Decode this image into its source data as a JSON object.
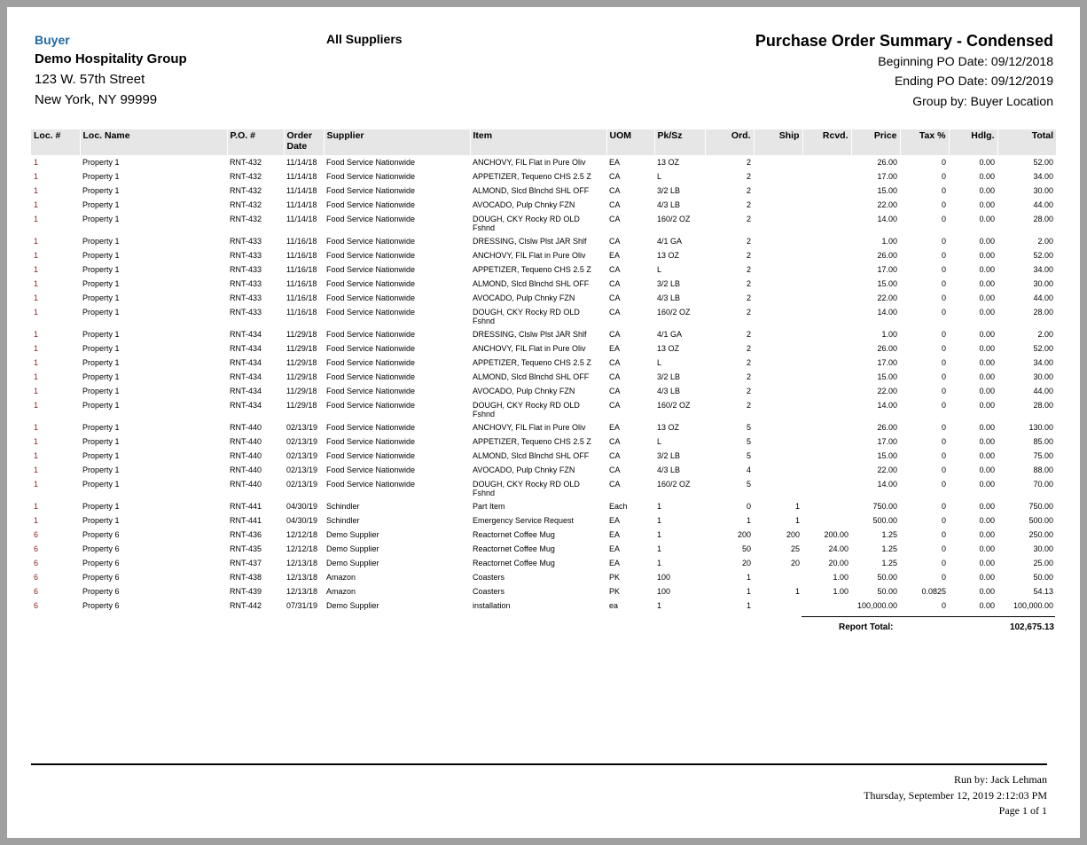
{
  "header": {
    "buyer_label": "Buyer",
    "company": "Demo Hospitality Group",
    "address_line1": "123 W. 57th Street",
    "address_line2": "New York, NY 99999",
    "supplier_filter": "All Suppliers",
    "title": "Purchase Order Summary - Condensed",
    "beginning_date": "Beginning PO Date: 09/12/2018",
    "ending_date": "Ending PO Date: 09/12/2019",
    "group_by": "Group by: Buyer Location"
  },
  "columns": [
    "Loc. #",
    "Loc. Name",
    "P.O. #",
    "Order Date",
    "Supplier",
    "Item",
    "UOM",
    "Pk/Sz",
    "Ord.",
    "Ship",
    "Rcvd.",
    "Price",
    "Tax %",
    "Hdlg.",
    "Total"
  ],
  "rows": [
    [
      "1",
      "Property 1",
      "RNT-432",
      "11/14/18",
      "Food Service Nationwide",
      "ANCHOVY, FIL Flat in Pure Oliv",
      "EA",
      "13 OZ",
      "2",
      "",
      "",
      "26.00",
      "0",
      "0.00",
      "52.00"
    ],
    [
      "1",
      "Property 1",
      "RNT-432",
      "11/14/18",
      "Food Service Nationwide",
      "APPETIZER, Tequeno CHS 2.5 Z",
      "CA",
      "L",
      "2",
      "",
      "",
      "17.00",
      "0",
      "0.00",
      "34.00"
    ],
    [
      "1",
      "Property 1",
      "RNT-432",
      "11/14/18",
      "Food Service Nationwide",
      "ALMOND, Slcd Blnchd SHL OFF",
      "CA",
      "3/2 LB",
      "2",
      "",
      "",
      "15.00",
      "0",
      "0.00",
      "30.00"
    ],
    [
      "1",
      "Property 1",
      "RNT-432",
      "11/14/18",
      "Food Service Nationwide",
      "AVOCADO, Pulp Chnky FZN",
      "CA",
      "4/3 LB",
      "2",
      "",
      "",
      "22.00",
      "0",
      "0.00",
      "44.00"
    ],
    [
      "1",
      "Property 1",
      "RNT-432",
      "11/14/18",
      "Food Service Nationwide",
      "DOUGH, CKY Rocky RD OLD Fshnd",
      "CA",
      "160/2 OZ",
      "2",
      "",
      "",
      "14.00",
      "0",
      "0.00",
      "28.00"
    ],
    [
      "1",
      "Property 1",
      "RNT-433",
      "11/16/18",
      "Food Service Nationwide",
      "DRESSING, Clslw Plst JAR Shlf",
      "CA",
      "4/1 GA",
      "2",
      "",
      "",
      "1.00",
      "0",
      "0.00",
      "2.00"
    ],
    [
      "1",
      "Property 1",
      "RNT-433",
      "11/16/18",
      "Food Service Nationwide",
      "ANCHOVY, FIL Flat in Pure Oliv",
      "EA",
      "13 OZ",
      "2",
      "",
      "",
      "26.00",
      "0",
      "0.00",
      "52.00"
    ],
    [
      "1",
      "Property 1",
      "RNT-433",
      "11/16/18",
      "Food Service Nationwide",
      "APPETIZER, Tequeno CHS 2.5 Z",
      "CA",
      "L",
      "2",
      "",
      "",
      "17.00",
      "0",
      "0.00",
      "34.00"
    ],
    [
      "1",
      "Property 1",
      "RNT-433",
      "11/16/18",
      "Food Service Nationwide",
      "ALMOND, Slcd Blnchd SHL OFF",
      "CA",
      "3/2 LB",
      "2",
      "",
      "",
      "15.00",
      "0",
      "0.00",
      "30.00"
    ],
    [
      "1",
      "Property 1",
      "RNT-433",
      "11/16/18",
      "Food Service Nationwide",
      "AVOCADO, Pulp Chnky FZN",
      "CA",
      "4/3 LB",
      "2",
      "",
      "",
      "22.00",
      "0",
      "0.00",
      "44.00"
    ],
    [
      "1",
      "Property 1",
      "RNT-433",
      "11/16/18",
      "Food Service Nationwide",
      "DOUGH, CKY Rocky RD OLD Fshnd",
      "CA",
      "160/2 OZ",
      "2",
      "",
      "",
      "14.00",
      "0",
      "0.00",
      "28.00"
    ],
    [
      "1",
      "Property 1",
      "RNT-434",
      "11/29/18",
      "Food Service Nationwide",
      "DRESSING, Clslw Plst JAR Shlf",
      "CA",
      "4/1 GA",
      "2",
      "",
      "",
      "1.00",
      "0",
      "0.00",
      "2.00"
    ],
    [
      "1",
      "Property 1",
      "RNT-434",
      "11/29/18",
      "Food Service Nationwide",
      "ANCHOVY, FIL Flat in Pure Oliv",
      "EA",
      "13 OZ",
      "2",
      "",
      "",
      "26.00",
      "0",
      "0.00",
      "52.00"
    ],
    [
      "1",
      "Property 1",
      "RNT-434",
      "11/29/18",
      "Food Service Nationwide",
      "APPETIZER, Tequeno CHS 2.5 Z",
      "CA",
      "L",
      "2",
      "",
      "",
      "17.00",
      "0",
      "0.00",
      "34.00"
    ],
    [
      "1",
      "Property 1",
      "RNT-434",
      "11/29/18",
      "Food Service Nationwide",
      "ALMOND, Slcd Blnchd SHL OFF",
      "CA",
      "3/2 LB",
      "2",
      "",
      "",
      "15.00",
      "0",
      "0.00",
      "30.00"
    ],
    [
      "1",
      "Property 1",
      "RNT-434",
      "11/29/18",
      "Food Service Nationwide",
      "AVOCADO, Pulp Chnky FZN",
      "CA",
      "4/3 LB",
      "2",
      "",
      "",
      "22.00",
      "0",
      "0.00",
      "44.00"
    ],
    [
      "1",
      "Property 1",
      "RNT-434",
      "11/29/18",
      "Food Service Nationwide",
      "DOUGH, CKY Rocky RD OLD Fshnd",
      "CA",
      "160/2 OZ",
      "2",
      "",
      "",
      "14.00",
      "0",
      "0.00",
      "28.00"
    ],
    [
      "1",
      "Property 1",
      "RNT-440",
      "02/13/19",
      "Food Service Nationwide",
      "ANCHOVY, FIL Flat in Pure Oliv",
      "EA",
      "13 OZ",
      "5",
      "",
      "",
      "26.00",
      "0",
      "0.00",
      "130.00"
    ],
    [
      "1",
      "Property 1",
      "RNT-440",
      "02/13/19",
      "Food Service Nationwide",
      "APPETIZER, Tequeno CHS 2.5 Z",
      "CA",
      "L",
      "5",
      "",
      "",
      "17.00",
      "0",
      "0.00",
      "85.00"
    ],
    [
      "1",
      "Property 1",
      "RNT-440",
      "02/13/19",
      "Food Service Nationwide",
      "ALMOND, Slcd Blnchd SHL OFF",
      "CA",
      "3/2 LB",
      "5",
      "",
      "",
      "15.00",
      "0",
      "0.00",
      "75.00"
    ],
    [
      "1",
      "Property 1",
      "RNT-440",
      "02/13/19",
      "Food Service Nationwide",
      "AVOCADO, Pulp Chnky FZN",
      "CA",
      "4/3 LB",
      "4",
      "",
      "",
      "22.00",
      "0",
      "0.00",
      "88.00"
    ],
    [
      "1",
      "Property 1",
      "RNT-440",
      "02/13/19",
      "Food Service Nationwide",
      "DOUGH, CKY Rocky RD OLD Fshnd",
      "CA",
      "160/2 OZ",
      "5",
      "",
      "",
      "14.00",
      "0",
      "0.00",
      "70.00"
    ],
    [
      "1",
      "Property 1",
      "RNT-441",
      "04/30/19",
      "Schindler",
      "Part Item",
      "Each",
      "1",
      "0",
      "1",
      "",
      "750.00",
      "0",
      "0.00",
      "750.00"
    ],
    [
      "1",
      "Property 1",
      "RNT-441",
      "04/30/19",
      "Schindler",
      "Emergency Service Request",
      "EA",
      "1",
      "1",
      "1",
      "",
      "500.00",
      "0",
      "0.00",
      "500.00"
    ],
    [
      "6",
      "Property 6",
      "RNT-436",
      "12/12/18",
      "Demo Supplier",
      "Reactornet Coffee Mug",
      "EA",
      "1",
      "200",
      "200",
      "200.00",
      "1.25",
      "0",
      "0.00",
      "250.00"
    ],
    [
      "6",
      "Property 6",
      "RNT-435",
      "12/12/18",
      "Demo Supplier",
      "Reactornet Coffee Mug",
      "EA",
      "1",
      "50",
      "25",
      "24.00",
      "1.25",
      "0",
      "0.00",
      "30.00"
    ],
    [
      "6",
      "Property 6",
      "RNT-437",
      "12/13/18",
      "Demo Supplier",
      "Reactornet Coffee Mug",
      "EA",
      "1",
      "20",
      "20",
      "20.00",
      "1.25",
      "0",
      "0.00",
      "25.00"
    ],
    [
      "6",
      "Property 6",
      "RNT-438",
      "12/13/18",
      "Amazon",
      "Coasters",
      "PK",
      "100",
      "1",
      "",
      "1.00",
      "50.00",
      "0",
      "0.00",
      "50.00"
    ],
    [
      "6",
      "Property 6",
      "RNT-439",
      "12/13/18",
      "Amazon",
      "Coasters",
      "PK",
      "100",
      "1",
      "1",
      "1.00",
      "50.00",
      "0.0825",
      "0.00",
      "54.13"
    ],
    [
      "6",
      "Property 6",
      "RNT-442",
      "07/31/19",
      "Demo Supplier",
      "installation",
      "ea",
      "1",
      "1",
      "",
      "",
      "100,000.00",
      "0",
      "0.00",
      "100,000.00"
    ]
  ],
  "report_total": {
    "label": "Report Total:",
    "value": "102,675.13"
  },
  "footer": {
    "run_by": "Run by: Jack Lehman",
    "run_at": "Thursday, September 12,  2019   2:12:03 PM",
    "page": "Page 1 of 1"
  },
  "colors": {
    "buyer_label": "#1f6aa5",
    "loc_number": "#8b1a1a",
    "header_bg": "#e6e6e6",
    "frame": "#a0a0a0"
  }
}
